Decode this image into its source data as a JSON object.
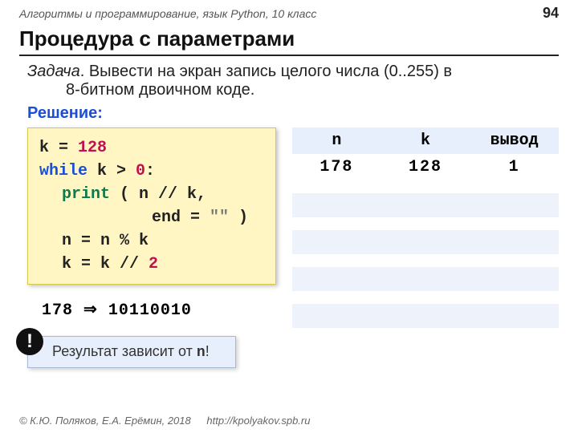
{
  "header": {
    "course": "Алгоритмы и программирование, язык Python, 10 класс",
    "page_no": "94"
  },
  "title": "Процедура с параметрами",
  "task": {
    "label": "Задача",
    "line1": ". Вывести на экран запись целого числа (0..255) в",
    "line2": "8-битном двоичном коде."
  },
  "solution_label": "Решение:",
  "code": {
    "l1_a": "k",
    "l1_b": " = ",
    "l1_c": "128",
    "l2_a": "while",
    "l2_b": " k > ",
    "l2_c": "0",
    "l2_d": ":",
    "l3_a": "print",
    "l3_b": " ( n // k,",
    "l4_a": "end = ",
    "l4_b": "\"\"",
    "l4_c": " )",
    "l5": "n = n % k",
    "l6_a": "k = k // ",
    "l6_b": "2"
  },
  "conversion": {
    "from": "178",
    "arrow": "⇒",
    "to": "10110010"
  },
  "note": {
    "text1": "Результат зависит от ",
    "mono": "n",
    "text2": "!",
    "bang": "!"
  },
  "table": {
    "headers": [
      "n",
      "k",
      "вывод"
    ],
    "row": [
      "178",
      "128",
      "1"
    ]
  },
  "footer": {
    "copy": "© К.Ю. Поляков, Е.А. Ерёмин, 2018",
    "url": "http://kpolyakov.spb.ru"
  },
  "colors": {
    "code_bg": "#fff6c4",
    "note_bg": "#e8effc",
    "table_head_bg": "#e8effc",
    "kw": "#1a4fd6",
    "fn": "#0b7a4a",
    "num": "#c01050"
  }
}
